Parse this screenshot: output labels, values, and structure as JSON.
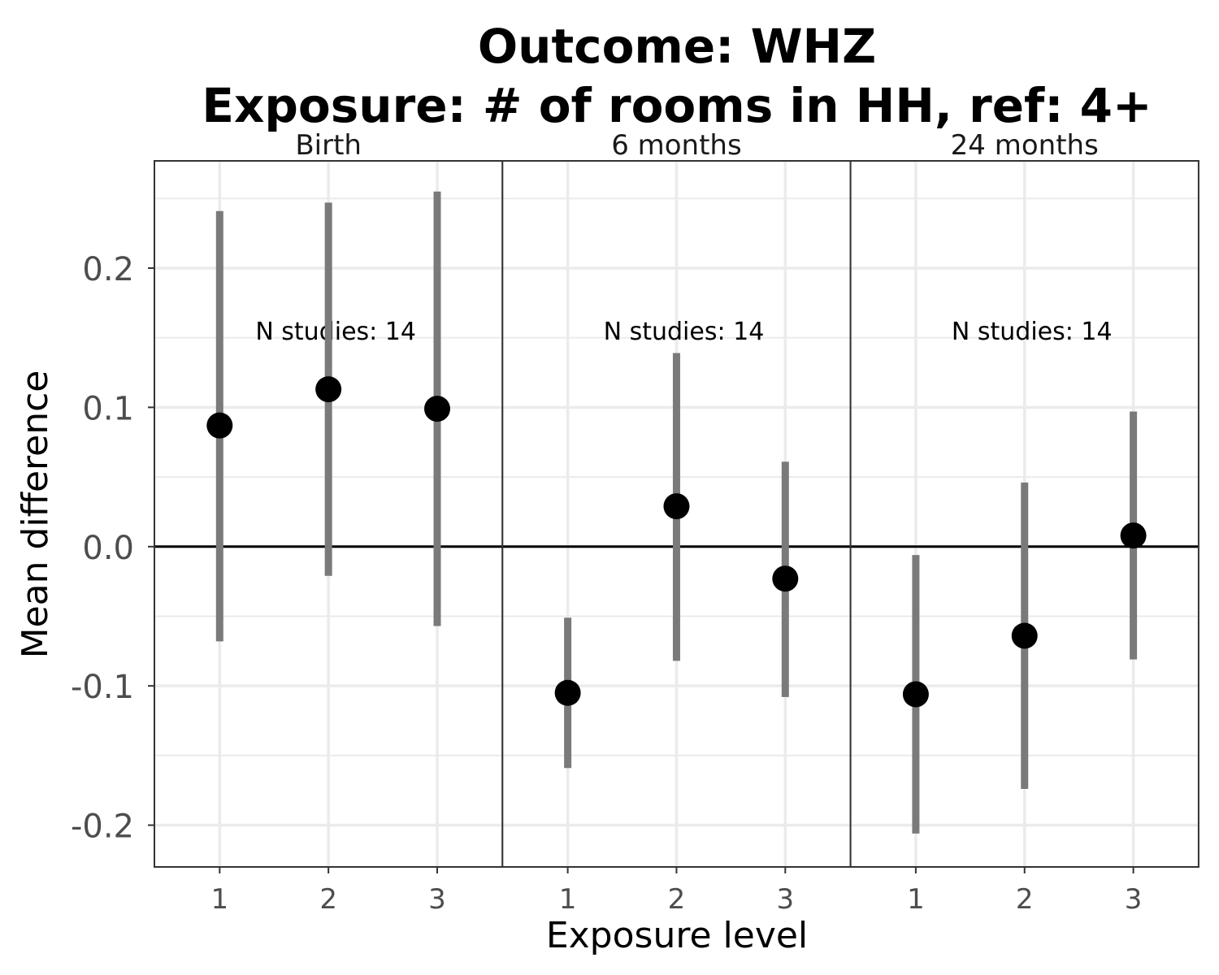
{
  "chart_data": {
    "type": "scatter",
    "subtype": "faceted point estimates with confidence intervals",
    "title": [
      "Outcome: WHZ",
      "Exposure: # of rooms in HH, ref: 4+"
    ],
    "xlabel": "Exposure level",
    "ylabel": "Mean difference",
    "ylim": [
      -0.23,
      0.277
    ],
    "yticks": [
      -0.2,
      -0.1,
      0.0,
      0.1,
      0.2
    ],
    "ytick_labels": [
      "-0.2",
      "-0.1",
      "0.0",
      "0.1",
      "0.2"
    ],
    "reference_line": 0,
    "grid": true,
    "colors": {
      "point": "#000000",
      "ci": "#7a7a7a",
      "grid": "#ebebeb",
      "refline": "#000000"
    },
    "facets": [
      {
        "label": "Birth",
        "annotation": "N studies: 14",
        "x": [
          "1",
          "2",
          "3"
        ],
        "estimate": [
          0.087,
          0.113,
          0.099
        ],
        "ci_lower": [
          -0.068,
          -0.021,
          -0.057
        ],
        "ci_upper": [
          0.241,
          0.247,
          0.255
        ]
      },
      {
        "label": "6 months",
        "annotation": "N studies: 14",
        "x": [
          "1",
          "2",
          "3"
        ],
        "estimate": [
          -0.105,
          0.029,
          -0.023
        ],
        "ci_lower": [
          -0.159,
          -0.082,
          -0.108
        ],
        "ci_upper": [
          -0.051,
          0.139,
          0.061
        ]
      },
      {
        "label": "24 months",
        "annotation": "N studies: 14",
        "x": [
          "1",
          "2",
          "3"
        ],
        "estimate": [
          -0.106,
          -0.064,
          0.008
        ],
        "ci_lower": [
          -0.206,
          -0.174,
          -0.081
        ],
        "ci_upper": [
          -0.006,
          0.046,
          0.097
        ]
      }
    ]
  }
}
